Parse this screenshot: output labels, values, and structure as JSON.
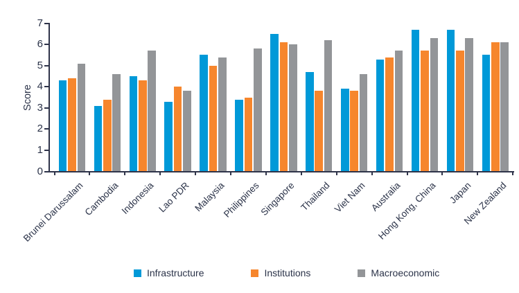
{
  "chart_data": {
    "type": "bar",
    "title": "",
    "ylabel": "Score",
    "xlabel": "",
    "ylim": [
      0,
      7
    ],
    "yticks": [
      0,
      1,
      2,
      3,
      4,
      5,
      6,
      7
    ],
    "grid": false,
    "legend_position": "bottom",
    "categories": [
      "Brunei Darussalam",
      "Cambodia",
      "Indonesia",
      "Lao PDR",
      "Malaysia",
      "Philippines",
      "Singapore",
      "Thailand",
      "Viet Nam",
      "Australia",
      "Hong Kong, China",
      "Japan",
      "New Zealand"
    ],
    "series": [
      {
        "name": "Infrastructure",
        "color": "#0099D8",
        "values": [
          4.3,
          3.1,
          4.5,
          3.3,
          5.5,
          3.4,
          6.5,
          4.7,
          3.9,
          5.3,
          6.7,
          6.7,
          5.5
        ]
      },
      {
        "name": "Institutions",
        "color": "#F6862D",
        "values": [
          4.4,
          3.4,
          4.3,
          4.0,
          5.0,
          3.5,
          6.1,
          3.8,
          3.8,
          5.4,
          5.7,
          5.7,
          6.1
        ]
      },
      {
        "name": "Macroeconomic",
        "color": "#939598",
        "values": [
          5.1,
          4.6,
          5.7,
          3.8,
          5.4,
          5.8,
          6.0,
          6.2,
          4.6,
          5.7,
          6.3,
          6.3,
          6.1
        ]
      }
    ]
  },
  "colors": {
    "axis": "#2E3349",
    "text": "#2A3248",
    "background": "#FFFFFF"
  }
}
